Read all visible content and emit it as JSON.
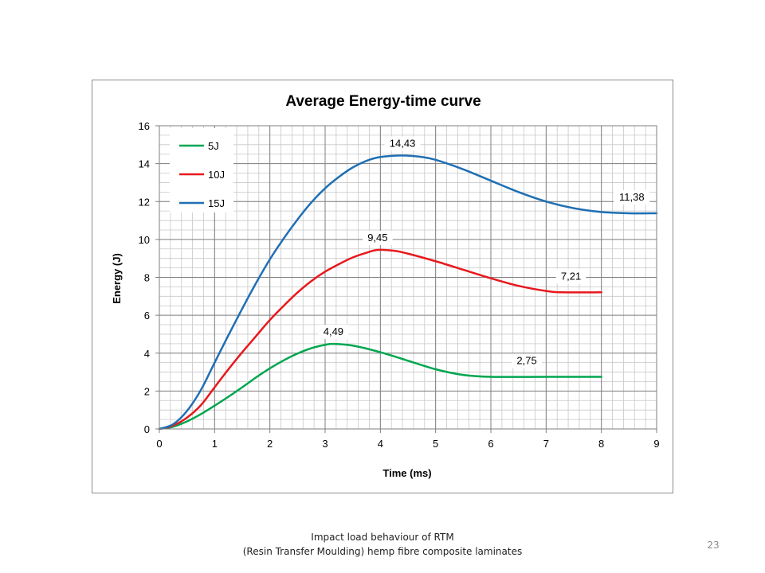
{
  "chart_data": {
    "type": "line",
    "title": "Average Energy-time curve",
    "xlabel": "Time (ms)",
    "ylabel": "Energy (J)",
    "xlim": [
      0,
      9
    ],
    "ylim": [
      0,
      16
    ],
    "xticks": [
      0,
      1,
      2,
      3,
      4,
      5,
      6,
      7,
      8,
      9
    ],
    "yticks": [
      0,
      2,
      4,
      6,
      8,
      10,
      12,
      14,
      16
    ],
    "grid": true,
    "legend_position": "top-left",
    "series": [
      {
        "name": "5J",
        "color": "#00a650",
        "points": [
          [
            0,
            0
          ],
          [
            0.25,
            0.12
          ],
          [
            0.5,
            0.4
          ],
          [
            0.75,
            0.78
          ],
          [
            1.0,
            1.23
          ],
          [
            1.25,
            1.7
          ],
          [
            1.5,
            2.2
          ],
          [
            1.75,
            2.72
          ],
          [
            2.0,
            3.2
          ],
          [
            2.25,
            3.62
          ],
          [
            2.5,
            3.98
          ],
          [
            2.75,
            4.26
          ],
          [
            3.0,
            4.44
          ],
          [
            3.15,
            4.49
          ],
          [
            3.5,
            4.4
          ],
          [
            4.0,
            4.05
          ],
          [
            4.5,
            3.6
          ],
          [
            5.0,
            3.15
          ],
          [
            5.5,
            2.85
          ],
          [
            6.0,
            2.75
          ],
          [
            7.0,
            2.75
          ],
          [
            8.0,
            2.75
          ]
        ],
        "callout": {
          "x": 3.15,
          "y": 4.49,
          "label": "4,49"
        },
        "end_label": {
          "x": 6.65,
          "y": 2.75,
          "label": "2,75"
        }
      },
      {
        "name": "10J",
        "color": "#e8181c",
        "points": [
          [
            0,
            0
          ],
          [
            0.25,
            0.18
          ],
          [
            0.5,
            0.6
          ],
          [
            0.75,
            1.25
          ],
          [
            1.0,
            2.2
          ],
          [
            1.25,
            3.15
          ],
          [
            1.5,
            4.05
          ],
          [
            1.75,
            4.9
          ],
          [
            2.0,
            5.75
          ],
          [
            2.25,
            6.5
          ],
          [
            2.5,
            7.2
          ],
          [
            2.75,
            7.8
          ],
          [
            3.0,
            8.3
          ],
          [
            3.25,
            8.7
          ],
          [
            3.5,
            9.05
          ],
          [
            3.75,
            9.3
          ],
          [
            3.95,
            9.45
          ],
          [
            4.25,
            9.4
          ],
          [
            4.5,
            9.25
          ],
          [
            5.0,
            8.85
          ],
          [
            5.5,
            8.4
          ],
          [
            6.0,
            7.95
          ],
          [
            6.5,
            7.55
          ],
          [
            7.0,
            7.28
          ],
          [
            7.3,
            7.21
          ],
          [
            8.0,
            7.21
          ]
        ],
        "callout": {
          "x": 3.95,
          "y": 9.45,
          "label": "9,45"
        },
        "end_label": {
          "x": 7.45,
          "y": 7.21,
          "label": "7,21"
        }
      },
      {
        "name": "15J",
        "color": "#1f6fb4",
        "points": [
          [
            0,
            0
          ],
          [
            0.25,
            0.25
          ],
          [
            0.5,
            0.95
          ],
          [
            0.75,
            2.05
          ],
          [
            1.0,
            3.5
          ],
          [
            1.25,
            4.95
          ],
          [
            1.5,
            6.35
          ],
          [
            1.75,
            7.7
          ],
          [
            2.0,
            8.95
          ],
          [
            2.25,
            10.05
          ],
          [
            2.5,
            11.05
          ],
          [
            2.75,
            11.95
          ],
          [
            3.0,
            12.7
          ],
          [
            3.25,
            13.3
          ],
          [
            3.5,
            13.8
          ],
          [
            3.75,
            14.15
          ],
          [
            4.0,
            14.35
          ],
          [
            4.4,
            14.43
          ],
          [
            4.75,
            14.35
          ],
          [
            5.0,
            14.2
          ],
          [
            5.5,
            13.7
          ],
          [
            6.0,
            13.1
          ],
          [
            6.5,
            12.5
          ],
          [
            7.0,
            12.0
          ],
          [
            7.5,
            11.65
          ],
          [
            8.0,
            11.45
          ],
          [
            8.5,
            11.38
          ],
          [
            9.0,
            11.38
          ]
        ],
        "callout": {
          "x": 4.4,
          "y": 14.43,
          "label": "14,43"
        },
        "end_label": {
          "x": 8.55,
          "y": 11.38,
          "label": "11,38"
        }
      }
    ]
  },
  "caption": {
    "line1": "Impact load behaviour of RTM",
    "line2": "(Resin Transfer Moulding) hemp fibre composite laminates"
  },
  "slide_number": "23"
}
